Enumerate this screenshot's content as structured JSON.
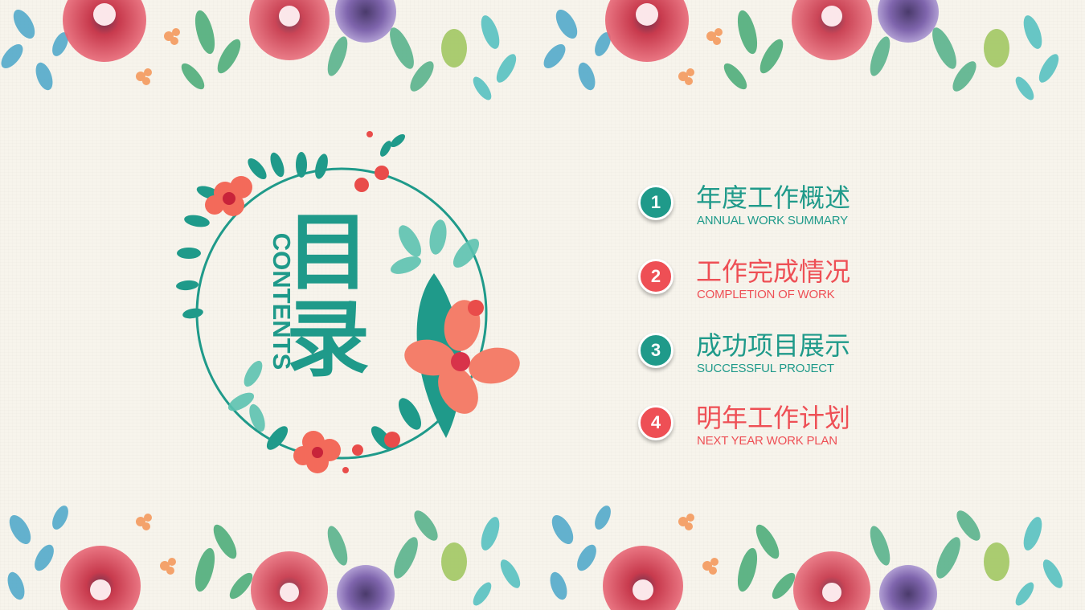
{
  "colors": {
    "teal": "#1f9a8a",
    "red": "#ee4f55",
    "background": "#f7f4ec"
  },
  "contents": {
    "latin": "CONTENTS",
    "cn_line1": "目",
    "cn_line2": "录"
  },
  "menu": {
    "items": [
      {
        "number": "1",
        "title": "年度工作概述",
        "subtitle": "ANNUAL WORK SUMMARY",
        "color": "teal"
      },
      {
        "number": "2",
        "title": "工作完成情况",
        "subtitle": "COMPLETION OF WORK",
        "color": "red"
      },
      {
        "number": "3",
        "title": "成功项目展示",
        "subtitle": "SUCCESSFUL PROJECT",
        "color": "teal"
      },
      {
        "number": "4",
        "title": "明年工作计划",
        "subtitle": "NEXT YEAR WORK PLAN",
        "color": "red"
      }
    ]
  },
  "decorations": {
    "top_border": "watercolor-floral-border",
    "bottom_border": "watercolor-floral-border",
    "wreath": "floral-wreath-ring"
  }
}
